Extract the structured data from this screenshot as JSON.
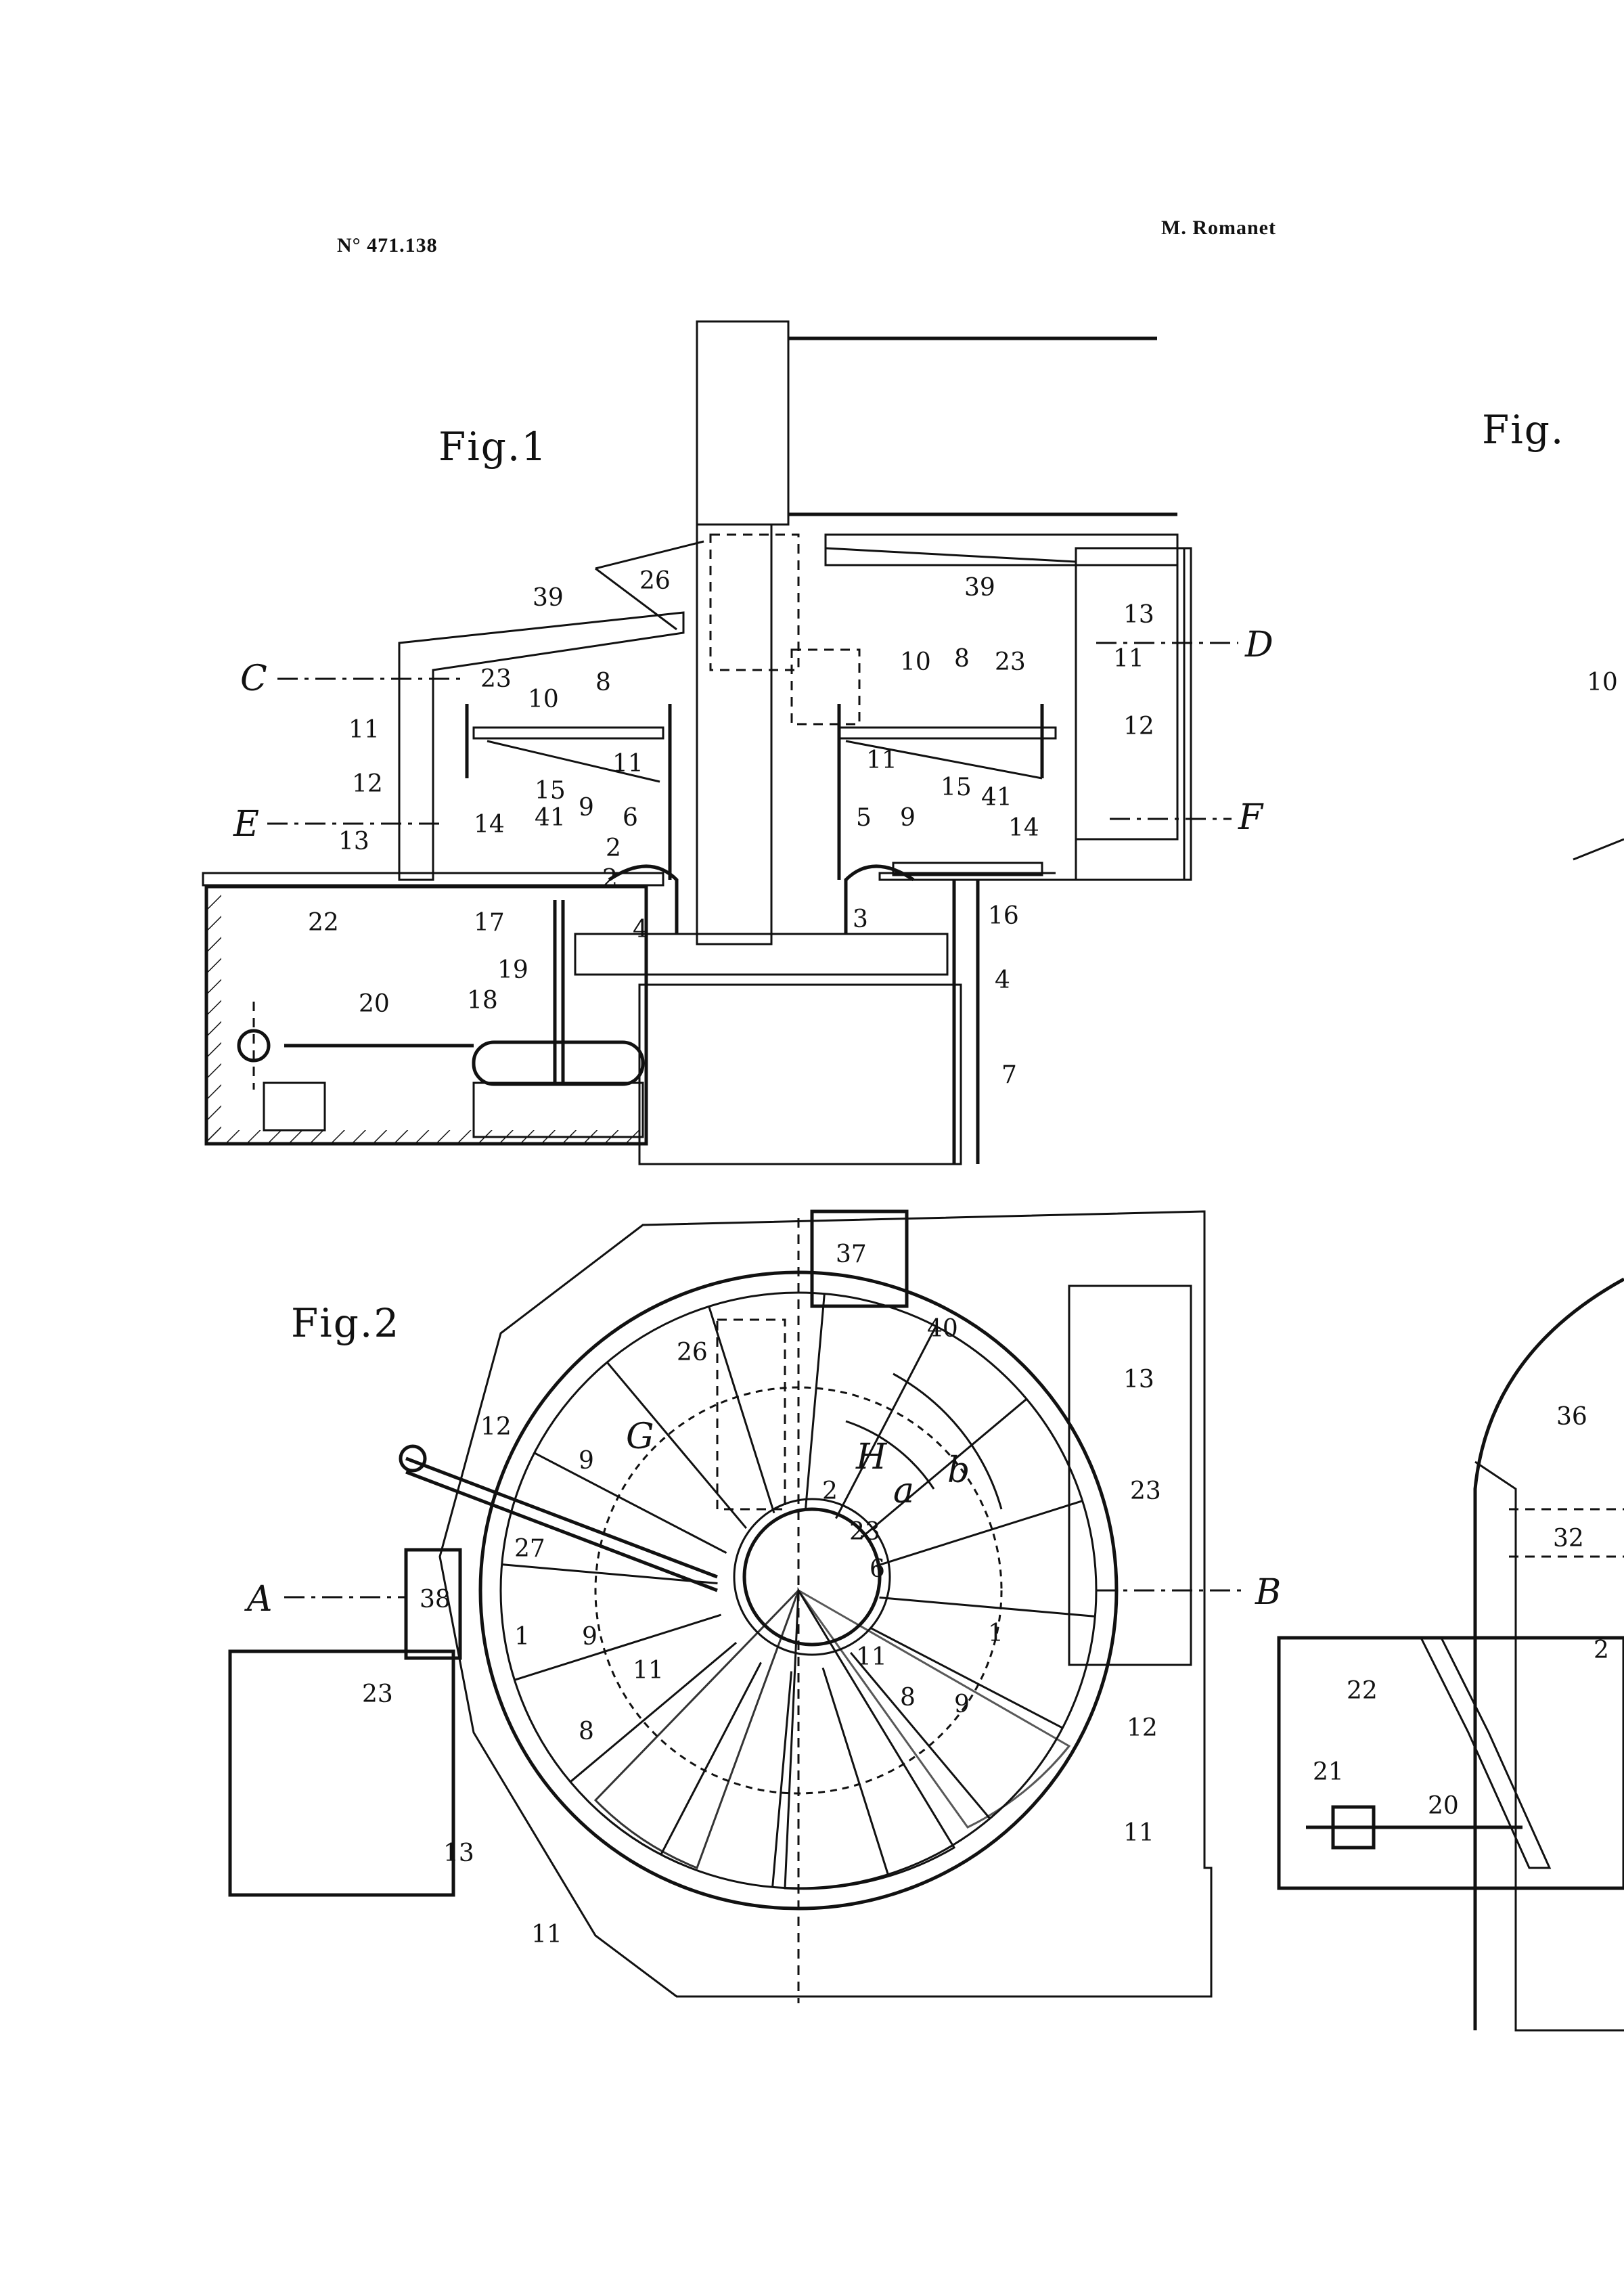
{
  "header": {
    "patent_number": "N° 471.138",
    "author": "M. Romanet"
  },
  "figures": {
    "fig1": {
      "title": "Fig.1",
      "section_letters": [
        "C",
        "D",
        "E",
        "F"
      ],
      "labels": [
        "39",
        "26",
        "39",
        "13",
        "23",
        "10",
        "8",
        "10",
        "8",
        "23",
        "11",
        "11",
        "12",
        "12",
        "11",
        "15",
        "9",
        "6",
        "11",
        "15",
        "41",
        "9",
        "5",
        "14",
        "41",
        "14",
        "13",
        "2",
        "2",
        "3",
        "16",
        "4",
        "4",
        "22",
        "17",
        "19",
        "18",
        "20",
        "7"
      ]
    },
    "fig2": {
      "title": "Fig.2",
      "section_letters": [
        "A",
        "B"
      ],
      "labels": [
        "37",
        "40",
        "26",
        "13",
        "12",
        "9",
        "G",
        "H",
        "a",
        "b",
        "2",
        "23",
        "23",
        "27",
        "6",
        "38",
        "1",
        "9",
        "1",
        "11",
        "11",
        "23",
        "9",
        "8",
        "8",
        "12",
        "13",
        "11",
        "11"
      ]
    },
    "fig_partial": {
      "title": "Fig.",
      "labels": [
        "10",
        "36",
        "32",
        "22",
        "2",
        "21",
        "20"
      ]
    }
  }
}
